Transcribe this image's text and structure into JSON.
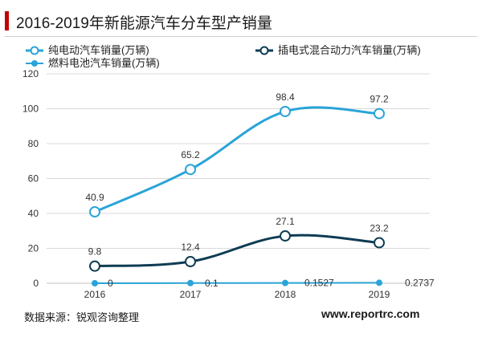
{
  "header": {
    "title": "2016-2019年新能源汽车分车型产销量"
  },
  "footer": {
    "source": "数据来源：锐观咨询整理",
    "site": "www.reportrc.com"
  },
  "colors": {
    "accent": "#c00000",
    "series_bev": "#2aa4d8",
    "series_phev": "#0f3c54",
    "series_fcv": "#2aa4d8"
  },
  "chart_data": {
    "type": "line",
    "title": "2016-2019年新能源汽车分车型产销量",
    "categories": [
      "2016",
      "2017",
      "2018",
      "2019"
    ],
    "ylim": [
      0,
      120
    ],
    "yticks": [
      "0",
      "20",
      "40",
      "60",
      "80",
      "100",
      "120"
    ],
    "grid": true,
    "legend_position": "top",
    "series": [
      {
        "name": "纯电动汽车销量(万辆)",
        "values": [
          40.9,
          65.2,
          98.4,
          97.2
        ],
        "labels": [
          "40.9",
          "65.2",
          "98.4",
          "97.2"
        ],
        "color": "#2aa4d8"
      },
      {
        "name": "插电式混合动力汽车销量(万辆)",
        "values": [
          9.8,
          12.4,
          27.1,
          23.2
        ],
        "labels": [
          "9.8",
          "12.4",
          "27.1",
          "23.2"
        ],
        "color": "#0f3c54"
      },
      {
        "name": "燃料电池汽车销量(万辆)",
        "values": [
          0,
          0.1,
          0.1527,
          0.2737
        ],
        "labels": [
          "0",
          "0.1",
          "0.1527",
          "0.2737"
        ],
        "color": "#2aa4d8"
      }
    ]
  }
}
